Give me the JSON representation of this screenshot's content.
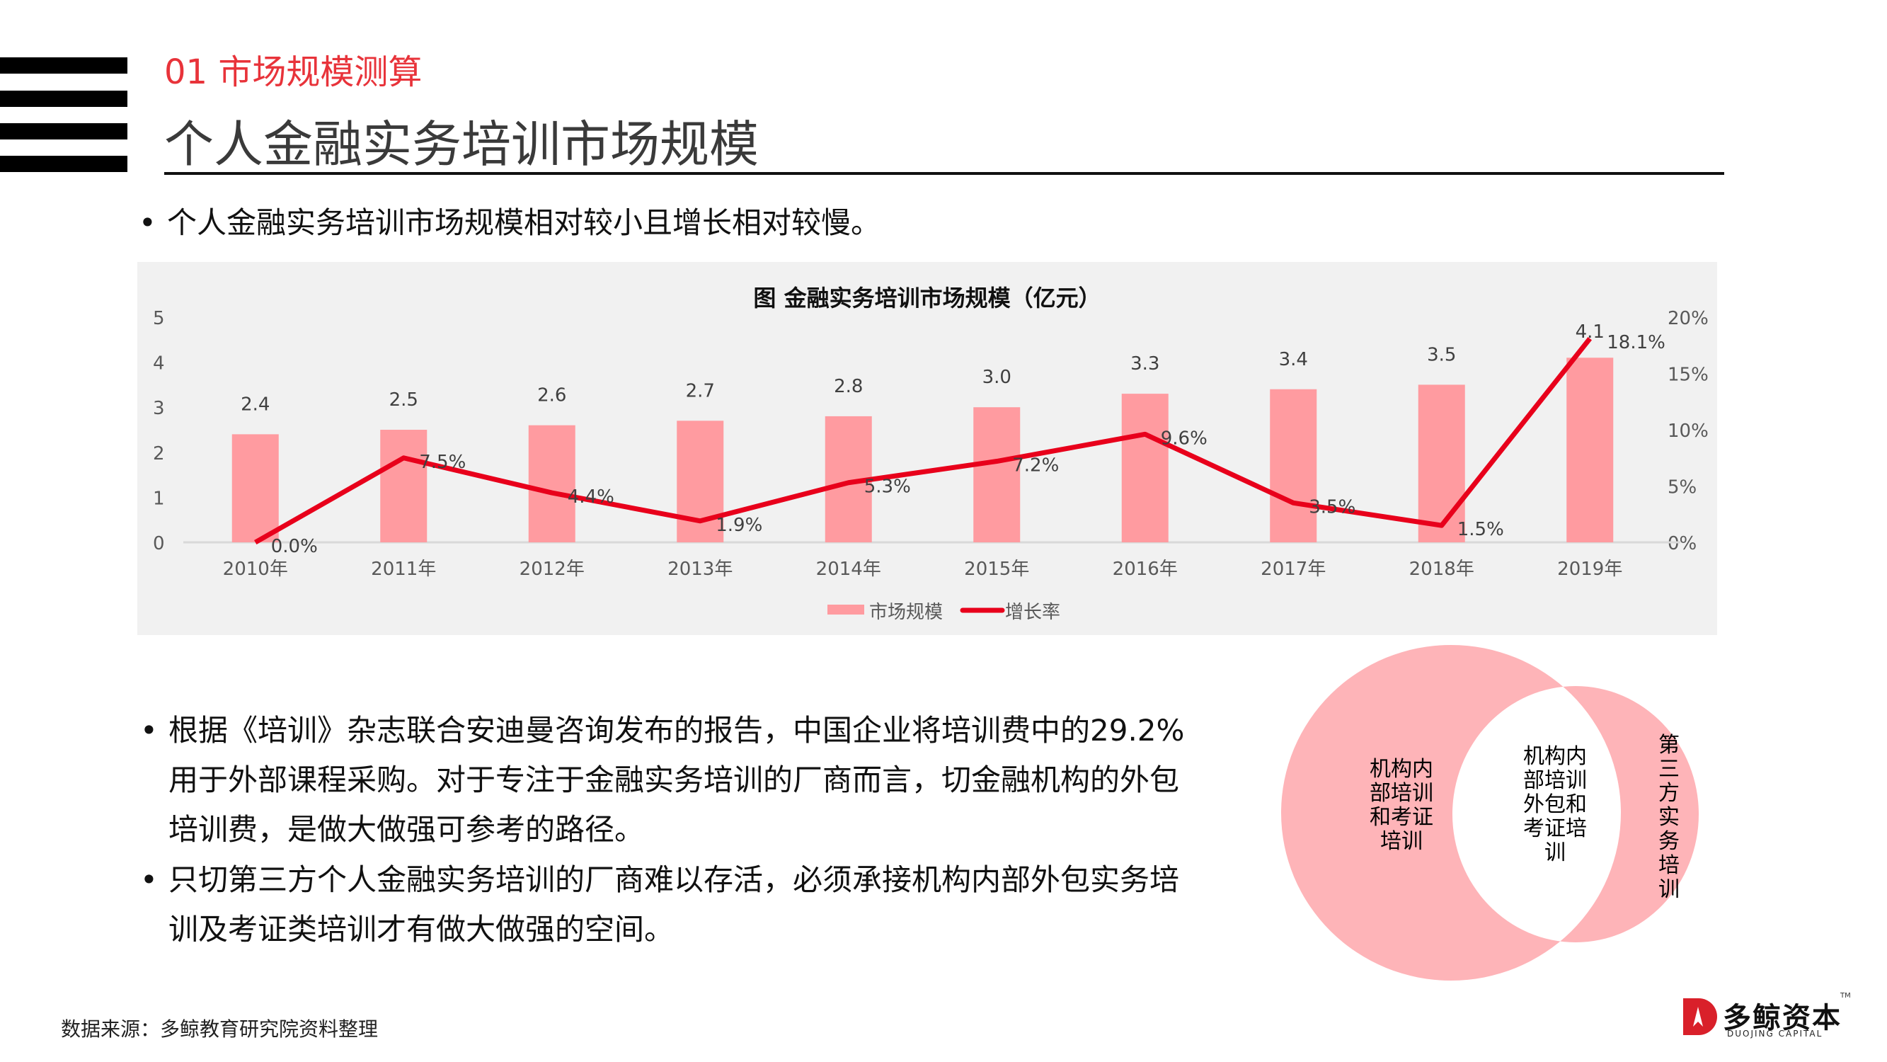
{
  "header": {
    "section_label": "01 市场规模测算",
    "title": "个人金融实务培训市场规模"
  },
  "bullets_top": [
    "个人金融实务培训市场规模相对较小且增长相对较慢。"
  ],
  "bullets_bottom": [
    {
      "lines": [
        "根据《培训》杂志联合安迪曼咨询发布的报告，中国企业将培训费中的29.2%",
        "用于外部课程采购。对于专注于金融实务培训的厂商而言，切金融机构的外包",
        "培训费，是做大做强可参考的路径。"
      ]
    },
    {
      "lines": [
        "只切第三方个人金融实务培训的厂商难以存活，必须承接机构内部外包实务培",
        "训及考证类培训才有做大做强的空间。"
      ]
    }
  ],
  "bullet_symbol": "•",
  "chart_data": {
    "type": "bar",
    "title": "图 金融实务培训市场规模（亿元）",
    "categories": [
      "2010年",
      "2011年",
      "2012年",
      "2013年",
      "2014年",
      "2015年",
      "2016年",
      "2017年",
      "2018年",
      "2019年"
    ],
    "series": [
      {
        "name": "市场规模",
        "type": "bar",
        "axis": "left",
        "color": "#ff9ba0",
        "values": [
          2.4,
          2.5,
          2.6,
          2.7,
          2.8,
          3.0,
          3.3,
          3.4,
          3.5,
          4.1
        ],
        "labels": [
          "2.4",
          "2.5",
          "2.6",
          "2.7",
          "2.8",
          "3.0",
          "3.3",
          "3.4",
          "3.5",
          "4.1"
        ]
      },
      {
        "name": "增长率",
        "type": "line",
        "axis": "right",
        "color": "#e8001b",
        "values": [
          0.0,
          7.5,
          4.4,
          1.9,
          5.3,
          7.2,
          9.6,
          3.5,
          1.5,
          18.1
        ],
        "labels": [
          "0.0%",
          "7.5%",
          "4.4%",
          "1.9%",
          "5.3%",
          "7.2%",
          "9.6%",
          "3.5%",
          "1.5%",
          "18.1%"
        ]
      }
    ],
    "y_left": {
      "ticks": [
        "0",
        "1",
        "2",
        "3",
        "4",
        "5"
      ],
      "ylim": [
        0,
        5
      ]
    },
    "y_right": {
      "ticks": [
        "0%",
        "5%",
        "10%",
        "15%",
        "20%"
      ],
      "ylim": [
        0,
        20
      ]
    },
    "xlabel": "",
    "ylabel": "",
    "grid": false,
    "legend_position": "bottom",
    "background": "#f1f1f1"
  },
  "venn": {
    "left_label": [
      "机构内",
      "部培训",
      "和考证",
      "培训"
    ],
    "center_label": [
      "机构内",
      "部培训",
      "外包和",
      "考证培",
      "训"
    ],
    "right_label": [
      "第",
      "三",
      "方",
      "实",
      "务",
      "培",
      "训"
    ],
    "fill_color": "#feb4b8"
  },
  "footer": {
    "source": "数据来源：多鲸教育研究院资料整理",
    "logo_name": "多鲸资本",
    "logo_sub": "DUOJING CAPITAL",
    "logo_tm": "TM"
  }
}
